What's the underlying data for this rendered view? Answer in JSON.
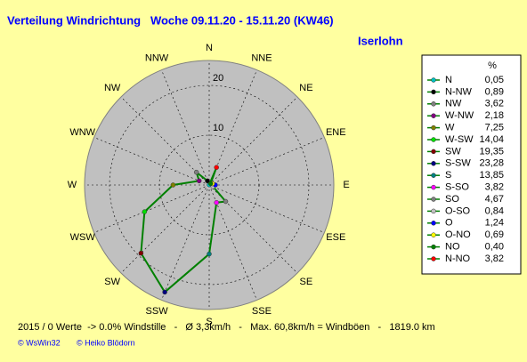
{
  "chart_data": {
    "type": "windrose",
    "title": "Verteilung Windrichtung   Woche 09.11.20 - 15.11.20 (KW46)",
    "subtitle": "Iserlohn",
    "directions": [
      "N",
      "NNE",
      "NE",
      "ENE",
      "E",
      "ESE",
      "SE",
      "SSE",
      "S",
      "SSW",
      "SW",
      "WSW",
      "W",
      "WNW",
      "NW",
      "NNW"
    ],
    "rlim": [
      0,
      25
    ],
    "rticks": [
      10,
      20
    ],
    "legend_unit": "%",
    "names": [
      "N",
      "N-NW",
      "NW",
      "W-NW",
      "W",
      "W-SW",
      "SW",
      "S-SW",
      "S",
      "S-SO",
      "SO",
      "O-SO",
      "O",
      "O-NO",
      "NO",
      "N-NO"
    ],
    "values": [
      0.05,
      0.89,
      3.62,
      2.18,
      7.25,
      14.04,
      19.35,
      23.28,
      13.85,
      3.82,
      4.67,
      0.84,
      1.24,
      0.69,
      0.4,
      3.82
    ],
    "value_labels": [
      "0,05",
      "0,89",
      "3,62",
      "2,18",
      "7,25",
      "14,04",
      "19,35",
      "23,28",
      "13,85",
      "3,82",
      "4,67",
      "0,84",
      "1,24",
      "0,69",
      "0,40",
      "3,82"
    ],
    "colors": [
      "#00c0c0",
      "#000000",
      "#808080",
      "#800080",
      "#808000",
      "#00e000",
      "#800000",
      "#000080",
      "#008080",
      "#ff00ff",
      "#808080",
      "#c0c0c0",
      "#0000ff",
      "#ffff00",
      "#008000",
      "#ff0000"
    ],
    "line_color": "#008000",
    "footer": "2015 / 0 Werte  -> 0.0% Windstille   -   Ø 3,3km/h   -   Max. 60,8km/h = Windböen   -   1819.0 km",
    "credits": [
      "© WsWin32",
      "© Heiko Blödorn"
    ]
  }
}
